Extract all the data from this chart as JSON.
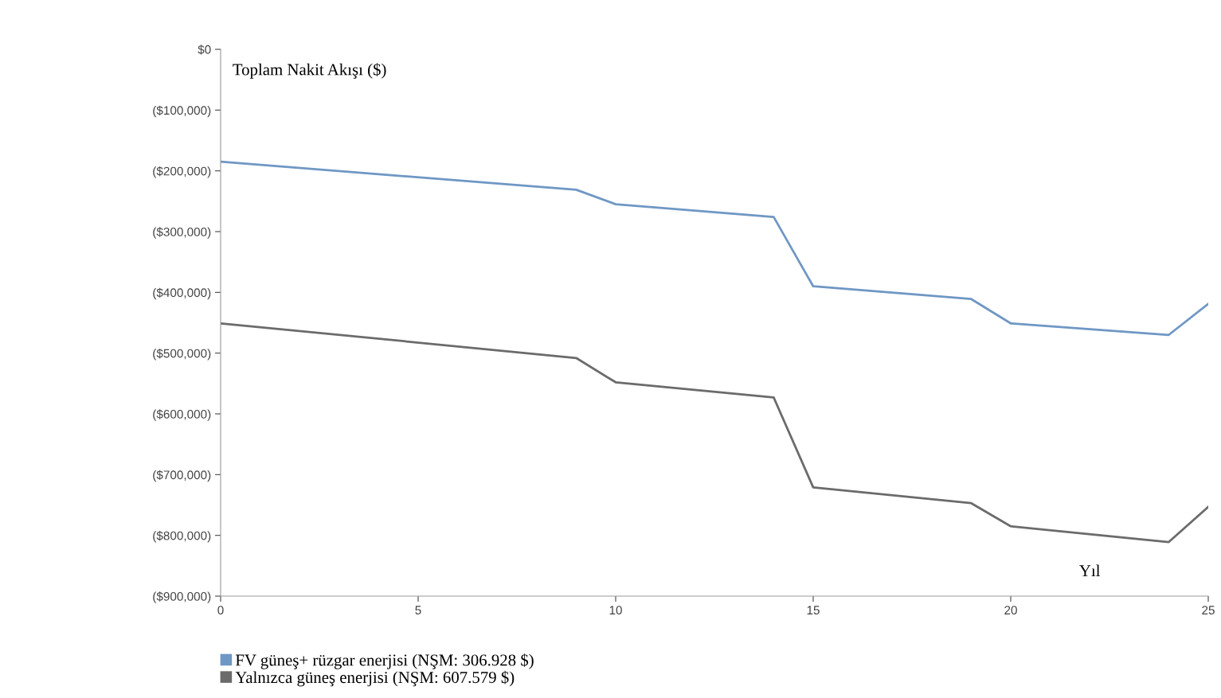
{
  "chart_data": {
    "type": "line",
    "ylabel": "Toplam Nakit Akışı ($)",
    "xlabel": "Yıl",
    "series": [
      {
        "name": "FV güneş+ rüzgar enerjisi (NŞM: 306.928 $)",
        "color": "#6f97c4",
        "x": [
          0,
          9,
          10,
          14,
          15,
          19,
          20,
          24,
          25
        ],
        "values": [
          -185000,
          -231000,
          -255000,
          -276000,
          -390000,
          -411000,
          -451000,
          -470000,
          -419000
        ]
      },
      {
        "name": "Yalnızca güneş enerjisi (NŞM: 607.579 $)",
        "color": "#6b6b6b",
        "x": [
          0,
          9,
          10,
          14,
          15,
          19,
          20,
          24,
          25
        ],
        "values": [
          -451000,
          -508000,
          -548000,
          -573000,
          -721000,
          -747000,
          -785000,
          -811000,
          -753000
        ]
      }
    ],
    "xlim": [
      0,
      25
    ],
    "xticks": [
      0,
      5,
      10,
      15,
      20,
      25
    ],
    "ylim": [
      -900000,
      0
    ],
    "yticks": [
      {
        "value": 0,
        "label": "$0"
      },
      {
        "value": -100000,
        "label": "($100,000)"
      },
      {
        "value": -200000,
        "label": "($200,000)"
      },
      {
        "value": -300000,
        "label": "($300,000)"
      },
      {
        "value": -400000,
        "label": "($400,000)"
      },
      {
        "value": -500000,
        "label": "($500,000)"
      },
      {
        "value": -600000,
        "label": "($600,000)"
      },
      {
        "value": -700000,
        "label": "($700,000)"
      },
      {
        "value": -800000,
        "label": "($800,000)"
      },
      {
        "value": -900000,
        "label": "($900,000)"
      }
    ],
    "grid": false,
    "legend": "bottom left",
    "marker": "none",
    "line_style": "solid"
  }
}
